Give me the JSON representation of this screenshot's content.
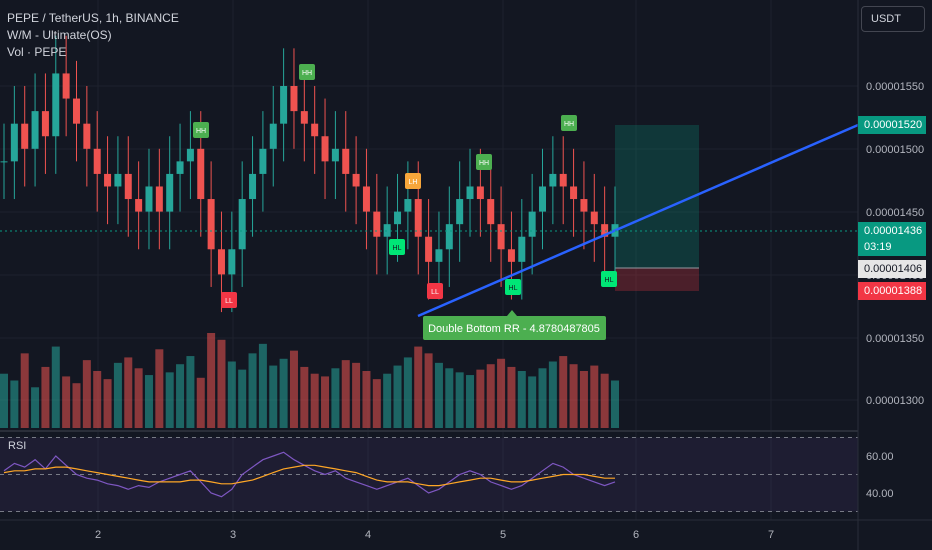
{
  "header": {
    "symbol_line": "PEPE / TetherUS, 1h, BINANCE",
    "indicator_line": "W/M - Ultimate(OS)",
    "volume_line": "Vol · PEPE",
    "currency_button": "USDT"
  },
  "price_axis": {
    "ticks": [
      "0.00001550",
      "0.00001500",
      "0.00001450",
      "0.00001400",
      "0.00001350",
      "0.00001300"
    ]
  },
  "price_tags": {
    "target": {
      "label": "0.00001520",
      "color": "#089981"
    },
    "last": {
      "label": "0.00001436",
      "countdown": "03:19",
      "color": "#089981"
    },
    "entry": {
      "label": "0.00001406",
      "color": "#e6e6e6"
    },
    "stop": {
      "label": "0.00001388",
      "color": "#f23645"
    }
  },
  "pattern_label": {
    "text": "Double Bottom RR - 4.8780487805",
    "color": "#4caf50"
  },
  "pivot_labels": [
    {
      "text": "HH",
      "kind": "high"
    },
    {
      "text": "HH",
      "kind": "high"
    },
    {
      "text": "HH",
      "kind": "high"
    },
    {
      "text": "HH",
      "kind": "high"
    },
    {
      "text": "LH",
      "kind": "lh"
    },
    {
      "text": "LL",
      "kind": "ll"
    },
    {
      "text": "LL",
      "kind": "ll"
    },
    {
      "text": "HL",
      "kind": "hl"
    },
    {
      "text": "HL",
      "kind": "hl"
    },
    {
      "text": "HL",
      "kind": "hl"
    }
  ],
  "rsi": {
    "title": "RSI",
    "ticks": [
      "60.00",
      "40.00"
    ]
  },
  "time_axis": {
    "ticks": [
      "2",
      "3",
      "4",
      "5",
      "6",
      "7"
    ]
  },
  "colors": {
    "up": "#26a69a",
    "down": "#ef5350",
    "trendline": "#2962ff",
    "rsi_line": "#7e57c2",
    "rsi_ma": "#ffa726"
  },
  "chart_data": {
    "type": "candlestick",
    "title": "PEPE / TetherUS, 1h, BINANCE",
    "y_range": [
      1.28e-05,
      1.6e-05
    ],
    "series": [
      {
        "name": "Close",
        "values": [
          1.49e-05,
          1.52e-05,
          1.5e-05,
          1.53e-05,
          1.51e-05,
          1.56e-05,
          1.54e-05,
          1.52e-05,
          1.5e-05,
          1.48e-05,
          1.47e-05,
          1.48e-05,
          1.46e-05,
          1.45e-05,
          1.47e-05,
          1.45e-05,
          1.48e-05,
          1.49e-05,
          1.5e-05,
          1.46e-05,
          1.42e-05,
          1.4e-05,
          1.42e-05,
          1.46e-05,
          1.48e-05,
          1.5e-05,
          1.52e-05,
          1.55e-05,
          1.53e-05,
          1.52e-05,
          1.51e-05,
          1.49e-05,
          1.5e-05,
          1.48e-05,
          1.47e-05,
          1.45e-05,
          1.43e-05,
          1.44e-05,
          1.45e-05,
          1.46e-05,
          1.43e-05,
          1.41e-05,
          1.42e-05,
          1.44e-05,
          1.46e-05,
          1.47e-05,
          1.46e-05,
          1.44e-05,
          1.42e-05,
          1.41e-05,
          1.43e-05,
          1.45e-05,
          1.47e-05,
          1.48e-05,
          1.47e-05,
          1.46e-05,
          1.45e-05,
          1.44e-05,
          1.43e-05,
          1.44e-05
        ]
      },
      {
        "name": "Volume",
        "values": [
          40,
          35,
          55,
          30,
          45,
          60,
          38,
          33,
          50,
          42,
          36,
          48,
          52,
          44,
          39,
          58,
          41,
          47,
          53,
          37,
          70,
          65,
          49,
          43,
          55,
          62,
          46,
          51,
          57,
          45,
          40,
          38,
          44,
          50,
          48,
          42,
          36,
          40,
          46,
          52,
          60,
          55,
          48,
          44,
          41,
          39,
          43,
          47,
          51,
          45,
          42,
          38,
          44,
          49,
          53,
          47,
          42,
          46,
          40,
          35
        ]
      },
      {
        "name": "RSI",
        "values": [
          52,
          56,
          54,
          58,
          53,
          60,
          55,
          50,
          48,
          47,
          45,
          44,
          42,
          44,
          43,
          46,
          48,
          50,
          52,
          46,
          40,
          38,
          42,
          50,
          54,
          58,
          60,
          62,
          58,
          55,
          52,
          50,
          52,
          48,
          46,
          44,
          42,
          44,
          46,
          48,
          44,
          40,
          42,
          46,
          50,
          52,
          50,
          46,
          44,
          42,
          44,
          48,
          52,
          56,
          54,
          50,
          48,
          46,
          44,
          46
        ]
      },
      {
        "name": "RSI MA",
        "values": [
          51,
          52,
          52,
          53,
          53,
          54,
          54,
          53,
          52,
          51,
          50,
          49,
          48,
          47,
          46,
          46,
          46,
          46,
          47,
          47,
          46,
          45,
          45,
          46,
          47,
          49,
          51,
          53,
          54,
          55,
          55,
          54,
          53,
          52,
          51,
          49,
          47,
          46,
          46,
          46,
          45,
          44,
          44,
          45,
          46,
          47,
          48,
          48,
          47,
          46,
          46,
          47,
          48,
          49,
          50,
          50,
          50,
          49,
          48,
          48
        ]
      }
    ]
  }
}
